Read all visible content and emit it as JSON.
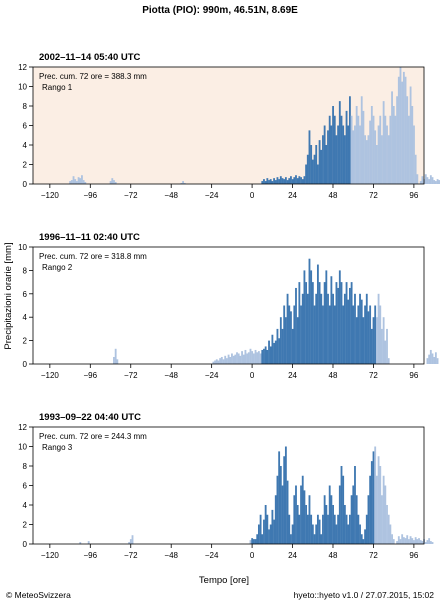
{
  "page": {
    "title": "Piotta (PIO): 990m, 46.51N, 8.69E",
    "ylabel": "Precipitazioni orarie [mm]",
    "xlabel": "Tempo [ore]",
    "footer_left": "© MeteoSvizzera",
    "footer_right": "hyeto::hyeto v1.0 / 27.07.2015, 15:02"
  },
  "colors": {
    "main": "#3f78b1",
    "light": "#aec3e0",
    "highlight_bg": "#fbeee4"
  },
  "chart_data": [
    {
      "type": "bar",
      "title": "2002–11–14 05:40 UTC",
      "annotation": "Prec. cum. 72 ore = 388.3 mm",
      "rank": "Rango 1",
      "highlighted": true,
      "xlim": [
        -130,
        102
      ],
      "ylim": [
        0,
        12
      ],
      "xticks": [
        -120,
        -96,
        -72,
        -48,
        -24,
        0,
        24,
        48,
        72,
        96
      ],
      "yticks": [
        0,
        2,
        4,
        6,
        8,
        10,
        12
      ],
      "x_start": -110,
      "values": [
        0,
        0,
        0.3,
        0.4,
        0.8,
        0.5,
        0.3,
        0.7,
        0.6,
        0.9,
        0.4,
        0.2,
        0,
        0,
        0,
        0,
        0,
        0,
        0,
        0,
        0,
        0,
        0,
        0,
        0,
        0,
        0.3,
        0.6,
        0.4,
        0.2,
        0,
        0,
        0,
        0,
        0,
        0,
        0,
        0,
        0,
        0,
        0,
        0,
        0,
        0,
        0,
        0,
        0,
        0,
        0,
        0,
        0,
        0,
        0,
        0,
        0,
        0,
        0,
        0,
        0,
        0,
        0,
        0,
        0,
        0,
        0,
        0,
        0,
        0,
        0.1,
        0.3,
        0.1,
        0,
        0,
        0,
        0,
        0,
        0,
        0,
        0,
        0,
        0,
        0,
        0,
        0,
        0,
        0,
        0,
        0,
        0,
        0,
        0,
        0,
        0,
        0,
        0,
        0,
        0,
        0,
        0,
        0,
        0,
        0,
        0,
        0,
        0,
        0,
        0,
        0,
        0,
        0,
        0,
        0,
        0,
        0,
        0,
        0,
        0.3,
        0.5,
        0.3,
        0.6,
        0.4,
        0.5,
        0.3,
        0.6,
        0.4,
        0.7,
        0.5,
        0.8,
        0.6,
        0.5,
        0.7,
        0.4,
        0.6,
        0.8,
        0.5,
        0.7,
        0.9,
        0.6,
        0.8,
        0.7,
        0.5,
        0.8,
        2,
        3,
        5.5,
        4,
        2.5,
        3,
        4,
        2,
        4.5,
        3.5,
        5,
        6,
        4,
        5.5,
        7,
        6,
        8,
        7,
        5,
        6,
        8.5,
        7,
        6,
        5,
        7.5,
        6,
        9,
        7,
        5.5,
        6,
        8,
        7,
        6,
        9,
        7.5,
        5,
        4.5,
        5,
        6.5,
        8,
        7,
        5.5,
        4,
        6,
        7,
        5,
        8.5,
        7,
        6,
        5,
        7,
        9.5,
        8,
        7,
        9,
        11,
        12,
        10.5,
        11.5,
        11,
        9,
        7,
        10,
        8,
        6,
        3,
        1,
        0,
        0.3,
        0.8,
        0.5,
        1,
        0.7,
        0.5,
        0.9,
        0.7,
        0.4,
        0.3,
        0.5,
        0.4,
        0.6,
        0.8,
        0.5,
        0.3,
        0.4,
        0.6,
        0.3,
        0.2,
        0.5,
        0.2,
        0,
        0.2,
        0.1
      ],
      "main_range": [
        0,
        58
      ]
    },
    {
      "type": "bar",
      "title": "1996–11–11 02:40 UTC",
      "annotation": "Prec. cum. 72 ore = 318.8 mm",
      "rank": "Rango 2",
      "highlighted": false,
      "xlim": [
        -130,
        102
      ],
      "ylim": [
        0,
        10
      ],
      "xticks": [
        -120,
        -96,
        -72,
        -48,
        -24,
        0,
        24,
        48,
        72,
        96
      ],
      "yticks": [
        0,
        2,
        4,
        6,
        8,
        10
      ],
      "x_start": -82,
      "values": [
        0.6,
        1.3,
        0.4,
        0,
        0,
        0,
        0,
        0,
        0,
        0,
        0,
        0,
        0,
        0,
        0,
        0,
        0,
        0,
        0,
        0,
        0,
        0,
        0,
        0,
        0,
        0,
        0,
        0,
        0,
        0,
        0,
        0,
        0,
        0,
        0,
        0,
        0,
        0,
        0,
        0,
        0,
        0,
        0,
        0,
        0,
        0,
        0,
        0,
        0,
        0,
        0,
        0,
        0,
        0,
        0,
        0,
        0,
        0,
        0,
        0.2,
        0.3,
        0.4,
        0.3,
        0.5,
        0.6,
        0.4,
        0.7,
        0.5,
        0.8,
        0.6,
        0.9,
        0.7,
        0.8,
        1,
        0.9,
        0.7,
        1.1,
        0.8,
        1.2,
        0.9,
        1,
        1.3,
        1.1,
        0.9,
        1.2,
        1,
        1.1,
        0.9,
        1.2,
        1.3,
        1.5,
        1.2,
        2,
        1.5,
        2.5,
        1.8,
        2,
        3,
        2.2,
        4,
        3,
        5,
        4,
        6,
        5,
        4.5,
        3,
        5,
        6.5,
        4,
        7,
        5,
        6,
        8,
        7,
        6,
        9,
        8,
        7,
        5,
        6,
        8.5,
        7,
        6,
        5,
        7,
        8,
        6,
        5,
        7.5,
        6,
        5,
        7,
        6.5,
        8,
        7,
        5,
        6,
        7,
        5.5,
        6.5,
        7,
        5,
        6,
        4,
        5,
        6,
        5.5,
        4,
        5,
        6,
        4.5,
        5,
        3,
        4,
        5,
        4,
        6,
        5,
        3,
        4,
        2,
        3,
        0.5,
        0,
        0,
        0,
        0,
        0,
        0,
        0,
        0,
        0,
        0,
        0,
        0,
        0,
        0,
        0,
        0,
        0,
        0,
        0,
        0,
        0,
        0,
        0.5,
        0.8,
        1.2,
        0.9,
        0.6,
        1,
        0.5
      ],
      "main_range": [
        6,
        73
      ]
    },
    {
      "type": "bar",
      "title": "1993–09–22 04:40 UTC",
      "annotation": "Prec. cum. 72 ore = 244.3 mm",
      "rank": "Rango 3",
      "highlighted": false,
      "xlim": [
        -130,
        102
      ],
      "ylim": [
        0,
        12
      ],
      "xticks": [
        -120,
        -96,
        -72,
        -48,
        -24,
        0,
        24,
        48,
        72,
        96
      ],
      "yticks": [
        0,
        2,
        4,
        6,
        8,
        10,
        12
      ],
      "x_start": -102,
      "values": [
        0.2,
        0,
        0,
        0,
        0,
        0.3,
        0,
        0,
        0,
        0,
        0,
        0,
        0,
        0,
        0,
        0,
        0,
        0,
        0,
        0,
        0,
        0,
        0,
        0,
        0,
        0,
        0,
        0,
        0,
        0.2,
        0.5,
        0.9,
        0,
        0,
        0,
        0,
        0,
        0,
        0,
        0,
        0,
        0,
        0,
        0,
        0,
        0,
        0,
        0,
        0,
        0,
        0,
        0,
        0,
        0,
        0,
        0,
        0,
        0,
        0,
        0,
        0,
        0,
        0,
        0,
        0,
        0,
        0,
        0,
        0,
        0,
        0,
        0,
        0,
        0,
        0,
        0,
        0,
        0,
        0,
        0,
        0,
        0,
        0,
        0,
        0,
        0,
        0,
        0,
        0,
        0,
        0,
        0,
        0,
        0,
        0,
        0,
        0,
        0,
        0,
        0,
        0,
        0.4,
        0.6,
        0.5,
        0.5,
        1,
        2,
        3,
        1,
        2.5,
        4,
        3,
        1.5,
        2,
        3.5,
        2.5,
        5,
        7,
        9.5,
        8,
        6,
        9,
        10,
        6.5,
        3,
        1,
        2,
        5,
        6,
        4,
        3,
        6,
        7,
        5.5,
        4,
        3,
        5,
        3,
        2,
        1,
        2,
        3,
        2.5,
        1,
        3,
        5,
        4,
        3,
        6,
        5,
        4,
        3,
        2,
        3,
        6,
        8,
        7,
        4,
        3,
        2,
        3,
        5,
        6,
        8,
        5,
        3,
        2,
        1,
        0.5,
        1.5,
        3,
        5,
        7,
        8.5,
        9.5,
        10,
        7,
        9,
        8,
        5,
        7,
        6,
        4,
        3,
        2,
        1,
        0.5,
        0,
        0.3,
        0.8,
        0.5,
        1,
        0.7,
        0.6,
        0.9,
        0.5,
        0.8,
        0.6,
        0.4,
        0.7,
        0.5,
        0.6,
        0.4,
        0.3,
        0.5,
        0.2,
        0.4,
        0.6,
        0.3,
        0.2
      ],
      "main_range": [
        0,
        72
      ]
    }
  ]
}
